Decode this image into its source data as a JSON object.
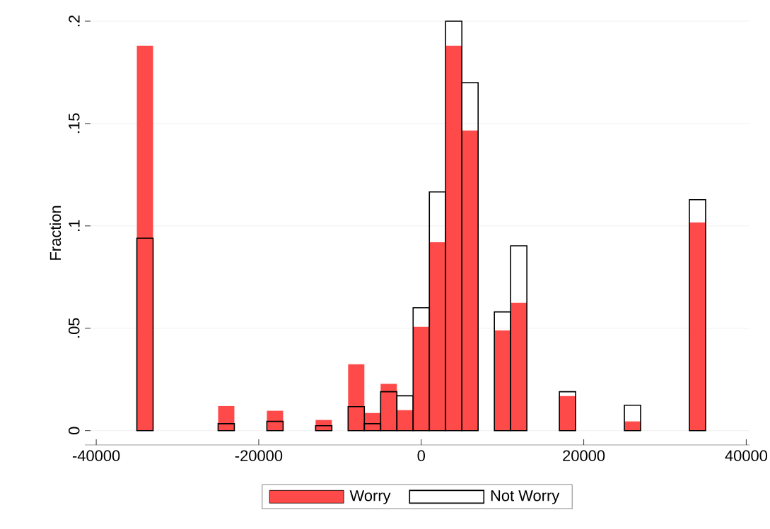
{
  "chart_data": {
    "type": "histogram",
    "ylabel": "Fraction",
    "bins": [
      -35000,
      -33000,
      -31000,
      -29000,
      -27000,
      -25000,
      -23000,
      -21000,
      -19000,
      -17000,
      -15000,
      -13000,
      -11000,
      -9000,
      -7000,
      -5000,
      -3000,
      -1000,
      1000,
      3000,
      5000,
      7000,
      9000,
      11000,
      13000,
      15000,
      17000,
      19000,
      21000,
      23000,
      25000,
      27000,
      29000,
      31000,
      33000,
      35000
    ],
    "series": [
      {
        "name": "Worry",
        "color": "#ff4a4a",
        "values": [
          0.188,
          null,
          null,
          null,
          null,
          0.012,
          null,
          null,
          0.0097,
          null,
          null,
          0.0052,
          null,
          0.0324,
          0.0086,
          0.0228,
          0.01,
          0.0507,
          0.092,
          0.188,
          0.1466,
          null,
          0.049,
          0.0624,
          null,
          null,
          0.0169,
          null,
          null,
          null,
          0.0045,
          null,
          null,
          null,
          0.1017
        ]
      },
      {
        "name": "Not Worry",
        "color": "#000000",
        "values": [
          0.094,
          null,
          null,
          null,
          null,
          0.0034,
          null,
          null,
          0.0045,
          null,
          null,
          0.0024,
          null,
          0.0117,
          0.0034,
          0.019,
          0.017,
          0.06,
          0.1166,
          0.2,
          0.17,
          null,
          0.058,
          0.0903,
          null,
          null,
          0.019,
          null,
          null,
          null,
          0.0124,
          null,
          null,
          null,
          0.1128
        ]
      }
    ],
    "xlim": [
      -41400,
      40400
    ],
    "ylim": [
      -0.007,
      0.2
    ],
    "xticks": [
      -40000,
      -20000,
      0,
      20000,
      40000
    ],
    "yticks": [
      0,
      {
        "value": 0.05,
        "label": ".05"
      },
      {
        "value": 0.1,
        "label": ".1"
      },
      {
        "value": 0.15,
        "label": ".15"
      },
      {
        "value": 0.2,
        "label": ".2"
      }
    ],
    "grid": "y",
    "legend": "bottom"
  }
}
